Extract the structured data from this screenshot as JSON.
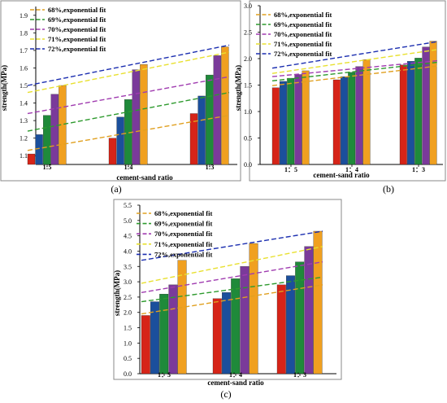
{
  "chart_data": [
    {
      "type": "bar",
      "panel_label": "(a)",
      "xlabel": "cement-sand ratio",
      "ylabel": "strength(MPa)",
      "categories": [
        "1:5",
        "1:4",
        "1:3"
      ],
      "ylim": [
        1.05,
        1.95
      ],
      "yticks": [
        1.1,
        1.2,
        1.3,
        1.4,
        1.5,
        1.6,
        1.7,
        1.8,
        1.9
      ],
      "tick_labels": [
        "1.1",
        "1.2",
        "1.3",
        "1.4",
        "1.5",
        "1.6",
        "1.7",
        "1.8",
        "1.9"
      ],
      "legend_placement": "top-left",
      "series": [
        {
          "name": "68%,exponential fit",
          "color": "#d62418",
          "fit_color": "#e0a020",
          "values": [
            1.11,
            1.2,
            1.34
          ]
        },
        {
          "name": "69%,exponential fit",
          "color": "#1b4f9c",
          "fit_color": "#2e9a2e",
          "values": [
            1.22,
            1.32,
            1.44
          ]
        },
        {
          "name": "70%,exponential fit",
          "color": "#1f8a3a",
          "fit_color": "#a03cb0",
          "values": [
            1.33,
            1.42,
            1.56
          ]
        },
        {
          "name": "71%,exponential fit",
          "color": "#7a3a9a",
          "fit_color": "#e8e030",
          "values": [
            1.45,
            1.59,
            1.67
          ]
        },
        {
          "name": "72%,exponential fit",
          "color": "#f0a020",
          "fit_color": "#1c2fb0",
          "values": [
            1.5,
            1.62,
            1.72
          ]
        }
      ],
      "fit_lines": [
        [
          1.13,
          1.33
        ],
        [
          1.24,
          1.46
        ],
        [
          1.34,
          1.55
        ],
        [
          1.46,
          1.69
        ],
        [
          1.5,
          1.73
        ]
      ]
    },
    {
      "type": "bar",
      "panel_label": "(b)",
      "xlabel": "cement-sand ratio",
      "ylabel": "strength(MPa)",
      "categories": [
        "1：5",
        "1：4",
        "1：3"
      ],
      "ylim": [
        0.0,
        3.0
      ],
      "yticks": [
        0.0,
        0.5,
        1.0,
        1.5,
        2.0,
        2.5,
        3.0
      ],
      "tick_labels": [
        "0.0",
        "0.5",
        "1.0",
        "1.5",
        "2.0",
        "2.5",
        "3.0"
      ],
      "legend_placement": "top-left",
      "series": [
        {
          "name": "68%,exponential fit",
          "color": "#d62418",
          "fit_color": "#e0a020",
          "values": [
            1.45,
            1.6,
            1.88
          ]
        },
        {
          "name": "69%,exponential fit",
          "color": "#1b4f9c",
          "fit_color": "#2e9a2e",
          "values": [
            1.57,
            1.66,
            1.95
          ]
        },
        {
          "name": "70%,exponential fit",
          "color": "#1f8a3a",
          "fit_color": "#a03cb0",
          "values": [
            1.63,
            1.74,
            2.01
          ]
        },
        {
          "name": "71%,exponential fit",
          "color": "#7a3a9a",
          "fit_color": "#e8e030",
          "values": [
            1.7,
            1.85,
            2.22
          ]
        },
        {
          "name": "72%,exponential fit",
          "color": "#f0a020",
          "fit_color": "#1c2fb0",
          "values": [
            1.77,
            1.98,
            2.33
          ]
        }
      ],
      "fit_lines": [
        [
          1.49,
          1.86
        ],
        [
          1.58,
          1.93
        ],
        [
          1.66,
          1.96
        ],
        [
          1.72,
          2.17
        ],
        [
          1.82,
          2.32
        ]
      ]
    },
    {
      "type": "bar",
      "panel_label": "(c)",
      "xlabel": "cement-sand ratio",
      "ylabel": "strength(MPa)",
      "categories": [
        "1：5",
        "1：4",
        "1：3"
      ],
      "ylim": [
        0.0,
        5.5
      ],
      "yticks": [
        0.0,
        0.5,
        1.0,
        1.5,
        2.0,
        2.5,
        3.0,
        3.5,
        4.0,
        4.5,
        5.0,
        5.5
      ],
      "tick_labels": [
        "0.0",
        "0.5",
        "1.0",
        "1.5",
        "2.0",
        "2.5",
        "3.0",
        "3.5",
        "4.0",
        "4.5",
        "5.0",
        "5.5"
      ],
      "legend_placement": "top-left",
      "series": [
        {
          "name": "68%,exponential fit",
          "color": "#d62418",
          "fit_color": "#e0a020",
          "values": [
            1.9,
            2.45,
            2.9
          ]
        },
        {
          "name": "69%,exponential fit",
          "color": "#1b4f9c",
          "fit_color": "#2e9a2e",
          "values": [
            2.35,
            2.65,
            3.2
          ]
        },
        {
          "name": "70%,exponential fit",
          "color": "#1f8a3a",
          "fit_color": "#a03cb0",
          "values": [
            2.6,
            3.1,
            3.65
          ]
        },
        {
          "name": "71%,exponential fit",
          "color": "#7a3a9a",
          "fit_color": "#e8e030",
          "values": [
            2.9,
            3.5,
            4.15
          ]
        },
        {
          "name": "72%,exponential fit",
          "color": "#f0a020",
          "fit_color": "#1c2fb0",
          "values": [
            3.7,
            4.25,
            4.65
          ]
        }
      ],
      "fit_lines": [
        [
          1.95,
          2.9
        ],
        [
          2.35,
          3.15
        ],
        [
          2.65,
          3.65
        ],
        [
          2.95,
          4.15
        ],
        [
          3.7,
          4.65
        ]
      ]
    }
  ]
}
